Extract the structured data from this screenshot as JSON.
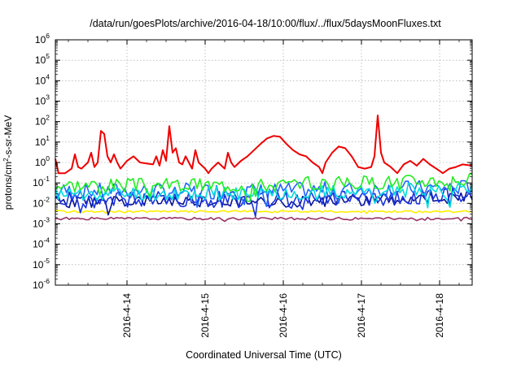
{
  "chart_data": {
    "type": "line",
    "title": "/data/run/goesPlots/archive/2016-04-18/10:00/flux/../flux/5daysMoonFluxes.txt",
    "xlabel": "Coordinated Universal Time (UTC)",
    "ylabel_parts": {
      "prefix": "protons/cm",
      "sup": "2",
      "suffix": "-s-sr-MeV"
    },
    "ylog": true,
    "ylim": [
      1e-06,
      1000000.0
    ],
    "xlim": [
      "2016-04-13 02:00",
      "2016-04-18 10:00"
    ],
    "grid": true,
    "yticks": [
      {
        "value": 1e-06,
        "base": "10",
        "exp": "-6"
      },
      {
        "value": 1e-05,
        "base": "10",
        "exp": "-5"
      },
      {
        "value": 0.0001,
        "base": "10",
        "exp": "-4"
      },
      {
        "value": 0.001,
        "base": "10",
        "exp": "-3"
      },
      {
        "value": 0.01,
        "base": "10",
        "exp": "-2"
      },
      {
        "value": 0.1,
        "base": "10",
        "exp": "-1"
      },
      {
        "value": 1,
        "base": "10",
        "exp": "0"
      },
      {
        "value": 10.0,
        "base": "10",
        "exp": "1"
      },
      {
        "value": 100.0,
        "base": "10",
        "exp": "2"
      },
      {
        "value": 1000.0,
        "base": "10",
        "exp": "3"
      },
      {
        "value": 10000.0,
        "base": "10",
        "exp": "4"
      },
      {
        "value": 100000.0,
        "base": "10",
        "exp": "5"
      },
      {
        "value": 1000000.0,
        "base": "10",
        "exp": "6"
      }
    ],
    "xticks": [
      {
        "value": "2016-04-14 00:00",
        "label": "2016-4-14"
      },
      {
        "value": "2016-04-15 00:00",
        "label": "2016-4-15"
      },
      {
        "value": "2016-04-16 00:00",
        "label": "2016-4-16"
      },
      {
        "value": "2016-04-17 00:00",
        "label": "2016-4-17"
      },
      {
        "value": "2016-04-18 00:00",
        "label": "2016-4-18"
      }
    ],
    "series": [
      {
        "color": "#ee0000",
        "points": [
          [
            "2016-04-13 02:00",
            1.5
          ],
          [
            "2016-04-13 03:00",
            0.3
          ],
          [
            "2016-04-13 05:00",
            0.3
          ],
          [
            "2016-04-13 07:00",
            0.5
          ],
          [
            "2016-04-13 08:00",
            2.5
          ],
          [
            "2016-04-13 09:00",
            0.6
          ],
          [
            "2016-04-13 10:00",
            0.5
          ],
          [
            "2016-04-13 12:00",
            1.0
          ],
          [
            "2016-04-13 13:00",
            3.0
          ],
          [
            "2016-04-13 14:00",
            0.6
          ],
          [
            "2016-04-13 15:00",
            1.0
          ],
          [
            "2016-04-13 16:00",
            35
          ],
          [
            "2016-04-13 17:00",
            25
          ],
          [
            "2016-04-13 18:00",
            2.0
          ],
          [
            "2016-04-13 19:00",
            1.0
          ],
          [
            "2016-04-13 20:00",
            2.5
          ],
          [
            "2016-04-13 21:00",
            1.0
          ],
          [
            "2016-04-13 22:00",
            0.5
          ],
          [
            "2016-04-14 00:00",
            1.2
          ],
          [
            "2016-04-14 02:00",
            2.0
          ],
          [
            "2016-04-14 04:00",
            1.0
          ],
          [
            "2016-04-14 06:00",
            0.9
          ],
          [
            "2016-04-14 08:00",
            0.8
          ],
          [
            "2016-04-14 09:00",
            2.0
          ],
          [
            "2016-04-14 10:00",
            0.7
          ],
          [
            "2016-04-14 11:00",
            4.0
          ],
          [
            "2016-04-14 12:00",
            1.2
          ],
          [
            "2016-04-14 13:00",
            60
          ],
          [
            "2016-04-14 14:00",
            3.0
          ],
          [
            "2016-04-14 15:00",
            5.0
          ],
          [
            "2016-04-14 16:00",
            1.0
          ],
          [
            "2016-04-14 17:00",
            0.8
          ],
          [
            "2016-04-14 18:00",
            2.0
          ],
          [
            "2016-04-14 19:00",
            1.0
          ],
          [
            "2016-04-14 20:00",
            0.5
          ],
          [
            "2016-04-14 21:00",
            4.0
          ],
          [
            "2016-04-14 22:00",
            1.0
          ],
          [
            "2016-04-15 00:00",
            0.5
          ],
          [
            "2016-04-15 01:00",
            0.3
          ],
          [
            "2016-04-15 02:00",
            0.5
          ],
          [
            "2016-04-15 04:00",
            1.0
          ],
          [
            "2016-04-15 06:00",
            0.5
          ],
          [
            "2016-04-15 07:00",
            3.0
          ],
          [
            "2016-04-15 08:00",
            1.0
          ],
          [
            "2016-04-15 09:00",
            0.6
          ],
          [
            "2016-04-15 11:00",
            1.2
          ],
          [
            "2016-04-15 13:00",
            2.0
          ],
          [
            "2016-04-15 15:00",
            4.0
          ],
          [
            "2016-04-15 17:00",
            8.0
          ],
          [
            "2016-04-15 19:00",
            15
          ],
          [
            "2016-04-15 21:00",
            20
          ],
          [
            "2016-04-15 23:00",
            18
          ],
          [
            "2016-04-16 01:00",
            8.0
          ],
          [
            "2016-04-16 03:00",
            4.0
          ],
          [
            "2016-04-16 05:00",
            2.5
          ],
          [
            "2016-04-16 07:00",
            2.0
          ],
          [
            "2016-04-16 09:00",
            1.0
          ],
          [
            "2016-04-16 11:00",
            0.6
          ],
          [
            "2016-04-16 12:00",
            0.3
          ],
          [
            "2016-04-16 13:00",
            1.0
          ],
          [
            "2016-04-16 15:00",
            3.0
          ],
          [
            "2016-04-16 17:00",
            6.0
          ],
          [
            "2016-04-16 19:00",
            5.0
          ],
          [
            "2016-04-16 21:00",
            2.0
          ],
          [
            "2016-04-16 23:00",
            0.6
          ],
          [
            "2016-04-17 01:00",
            0.5
          ],
          [
            "2016-04-17 03:00",
            0.6
          ],
          [
            "2016-04-17 04:00",
            2.0
          ],
          [
            "2016-04-17 05:00",
            200
          ],
          [
            "2016-04-17 06:00",
            3.0
          ],
          [
            "2016-04-17 07:00",
            1.0
          ],
          [
            "2016-04-17 09:00",
            0.6
          ],
          [
            "2016-04-17 11:00",
            0.3
          ],
          [
            "2016-04-17 13:00",
            0.8
          ],
          [
            "2016-04-17 15:00",
            1.2
          ],
          [
            "2016-04-17 17:00",
            0.7
          ],
          [
            "2016-04-17 19:00",
            1.5
          ],
          [
            "2016-04-17 21:00",
            0.8
          ],
          [
            "2016-04-17 23:00",
            0.5
          ],
          [
            "2016-04-18 01:00",
            0.3
          ],
          [
            "2016-04-18 03:00",
            0.5
          ],
          [
            "2016-04-18 05:00",
            0.6
          ],
          [
            "2016-04-18 07:00",
            0.8
          ],
          [
            "2016-04-18 10:00",
            0.7
          ]
        ]
      },
      {
        "color": "#22ee22",
        "base": [
          0.08,
          0.08,
          0.15
        ],
        "swing": 0.35,
        "seed": 3
      },
      {
        "color": "#00dddd",
        "base": [
          0.03,
          0.03,
          0.05
        ],
        "swing": 0.35,
        "seed": 11
      },
      {
        "color": "#2266ff",
        "base": [
          0.04,
          0.04,
          0.06
        ],
        "swing": 0.4,
        "seed": 7
      },
      {
        "color": "#1a33dd",
        "base": [
          0.015,
          0.015,
          0.025
        ],
        "swing": 0.4,
        "seed": 19
      },
      {
        "color": "#0a1499",
        "base": [
          0.012,
          0.012,
          0.02
        ],
        "swing": 0.3,
        "seed": 23
      },
      {
        "color": "#ffee00",
        "base": [
          0.004,
          0.004,
          0.004
        ],
        "swing": 0.05,
        "seed": 29
      },
      {
        "color": "#993366",
        "base": [
          0.0018,
          0.0018,
          0.0018
        ],
        "swing": 0.06,
        "seed": 31
      }
    ]
  }
}
